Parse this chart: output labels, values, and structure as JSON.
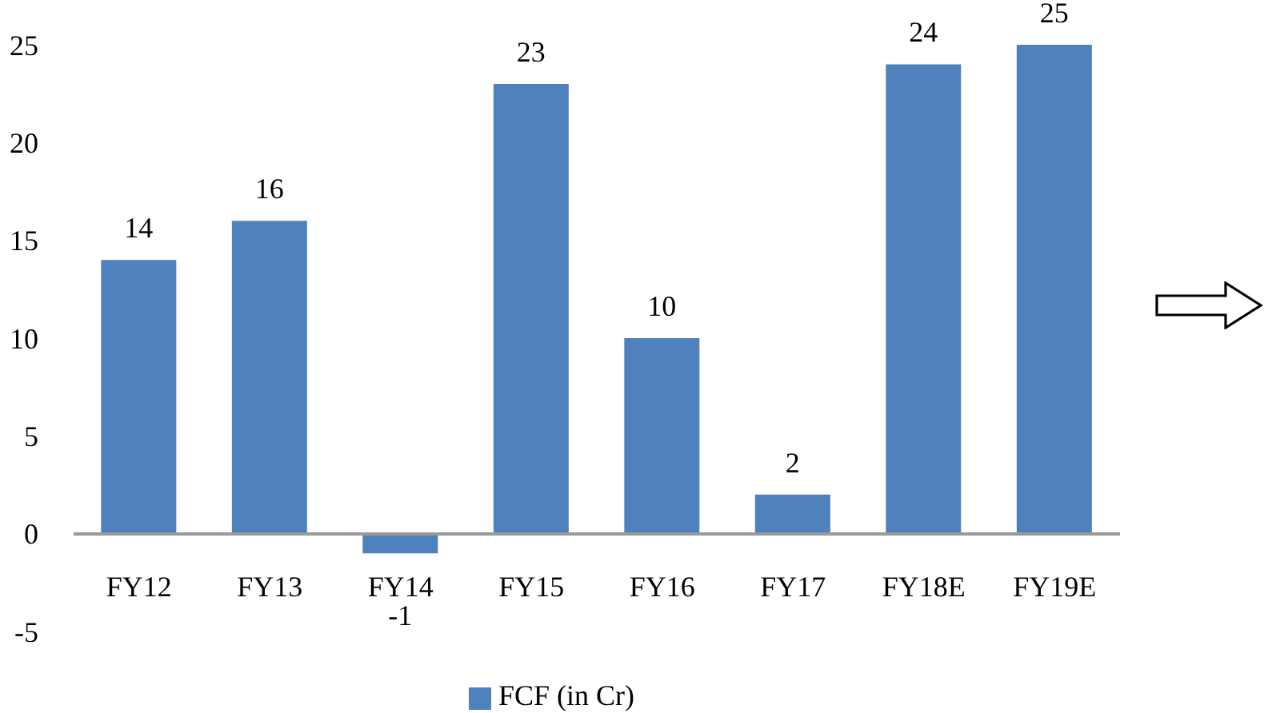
{
  "chart_data": {
    "type": "bar",
    "categories": [
      "FY12",
      "FY13",
      "FY14",
      "FY15",
      "FY16",
      "FY17",
      "FY18E",
      "FY19E"
    ],
    "series": [
      {
        "name": "FCF (in Cr)",
        "color": "#4f81bd",
        "values": [
          14,
          16,
          -1,
          23,
          10,
          2,
          24,
          25
        ]
      }
    ],
    "ylim": [
      -5,
      25
    ],
    "yticks": [
      -5,
      0,
      5,
      10,
      15,
      20,
      25
    ],
    "grid": false,
    "legend": "bottom",
    "data_labels": true
  }
}
